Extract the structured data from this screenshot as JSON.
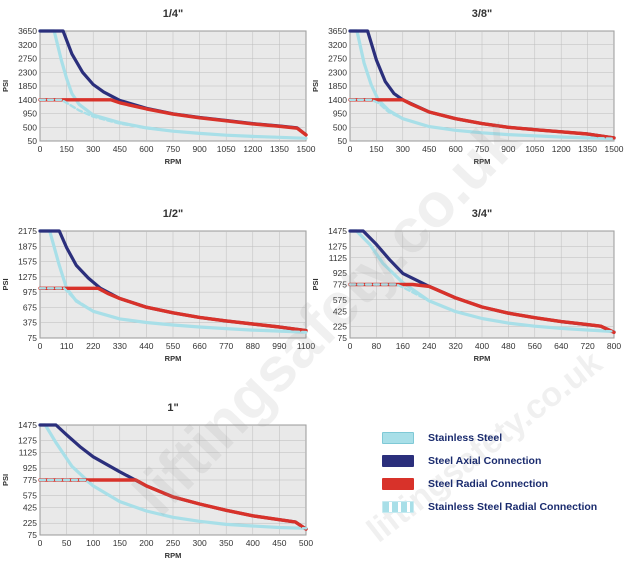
{
  "watermark": {
    "text_large": "liftingsafety.co.uk",
    "text_small": "liftingsafety.co.uk"
  },
  "colors": {
    "stainless_steel": "#a8dfe8",
    "steel_axial": "#2b2f7c",
    "steel_radial": "#d8322a",
    "stainless_radial": "#a8dfe8",
    "plot_bg": "#e9e9e9",
    "grid": "#bdbdbd"
  },
  "legend": {
    "items": [
      {
        "key": "stainless_steel",
        "label": "Stainless Steel",
        "style": "solid-light"
      },
      {
        "key": "steel_axial",
        "label": "Steel Axial Connection",
        "style": "solid-dark"
      },
      {
        "key": "steel_radial",
        "label": "Steel Radial Connection",
        "style": "solid-red"
      },
      {
        "key": "stainless_radial",
        "label": "Stainless Steel Radial Connection",
        "style": "dashed-light"
      }
    ]
  },
  "chart_data": [
    {
      "type": "line",
      "title": "1/4\"",
      "xlabel": "RPM",
      "ylabel": "PSI",
      "x_ticks": [
        0,
        150,
        300,
        450,
        600,
        750,
        900,
        1050,
        1200,
        1350,
        1500
      ],
      "y_ticks": [
        50,
        500,
        950,
        1400,
        1850,
        2300,
        2750,
        3200,
        3650
      ],
      "xlim": [
        0,
        1500
      ],
      "ylim": [
        50,
        3650
      ],
      "series": [
        {
          "name": "Stainless Steel",
          "x": [
            0,
            80,
            120,
            150,
            180,
            220,
            300,
            450,
            600,
            750,
            900,
            1050,
            1200,
            1350,
            1500
          ],
          "y": [
            3650,
            3650,
            2700,
            2100,
            1600,
            1250,
            900,
            650,
            480,
            370,
            300,
            240,
            200,
            170,
            140
          ]
        },
        {
          "name": "Steel Axial Connection",
          "x": [
            0,
            130,
            180,
            240,
            300,
            360,
            450,
            600,
            750,
            900,
            1050,
            1200,
            1350,
            1450,
            1500
          ],
          "y": [
            3650,
            3650,
            2900,
            2300,
            1900,
            1650,
            1380,
            1120,
            940,
            820,
            720,
            620,
            540,
            480,
            250
          ]
        },
        {
          "name": "Steel Radial Connection",
          "x": [
            0,
            400,
            450,
            600,
            750,
            900,
            1050,
            1200,
            1350,
            1450,
            1500
          ],
          "y": [
            1400,
            1400,
            1300,
            1100,
            930,
            810,
            710,
            610,
            530,
            470,
            250
          ]
        },
        {
          "name": "Stainless Steel Radial Connection",
          "x": [
            0,
            120,
            150,
            220,
            300,
            450,
            600,
            750,
            900,
            1050,
            1200,
            1350,
            1500
          ],
          "y": [
            1400,
            1400,
            1300,
            1050,
            850,
            620,
            470,
            370,
            300,
            240,
            200,
            170,
            140
          ]
        }
      ]
    },
    {
      "type": "line",
      "title": "3/8\"",
      "xlabel": "RPM",
      "ylabel": "PSI",
      "x_ticks": [
        0,
        150,
        300,
        450,
        600,
        750,
        900,
        1050,
        1200,
        1350,
        1500
      ],
      "y_ticks": [
        50,
        500,
        950,
        1400,
        1850,
        2300,
        2750,
        3200,
        3650
      ],
      "xlim": [
        0,
        1500
      ],
      "ylim": [
        50,
        3650
      ],
      "series": [
        {
          "name": "Stainless Steel",
          "x": [
            0,
            40,
            80,
            120,
            160,
            220,
            300,
            450,
            600,
            750,
            900,
            1050,
            1200,
            1350,
            1500
          ],
          "y": [
            3650,
            3650,
            2600,
            1900,
            1400,
            1050,
            780,
            520,
            400,
            320,
            260,
            220,
            180,
            150,
            130
          ]
        },
        {
          "name": "Steel Axial Connection",
          "x": [
            0,
            100,
            150,
            200,
            250,
            300,
            450,
            600,
            750,
            900,
            1050,
            1200,
            1350,
            1500
          ],
          "y": [
            3650,
            3650,
            2700,
            2000,
            1600,
            1400,
            1000,
            780,
            620,
            500,
            420,
            350,
            280,
            150
          ]
        },
        {
          "name": "Steel Radial Connection",
          "x": [
            0,
            300,
            350,
            450,
            600,
            750,
            900,
            1050,
            1200,
            1350,
            1500
          ],
          "y": [
            1400,
            1400,
            1250,
            1000,
            780,
            620,
            500,
            420,
            350,
            280,
            150
          ]
        },
        {
          "name": "Stainless Steel Radial Connection",
          "x": [
            0,
            120,
            160,
            220,
            300,
            450,
            600,
            750,
            900,
            1050,
            1200,
            1350,
            1500
          ],
          "y": [
            1400,
            1400,
            1300,
            1000,
            780,
            520,
            400,
            320,
            260,
            220,
            180,
            150,
            130
          ]
        }
      ]
    },
    {
      "type": "line",
      "title": "1/2\"",
      "xlabel": "RPM",
      "ylabel": "PSI",
      "x_ticks": [
        0,
        110,
        220,
        330,
        440,
        550,
        660,
        770,
        880,
        990,
        1100
      ],
      "y_ticks": [
        75,
        375,
        675,
        975,
        1275,
        1575,
        1875,
        2175
      ],
      "xlim": [
        0,
        1100
      ],
      "ylim": [
        75,
        2175
      ],
      "series": [
        {
          "name": "Stainless Steel",
          "x": [
            0,
            40,
            80,
            110,
            150,
            220,
            330,
            440,
            550,
            660,
            770,
            880,
            990,
            1100
          ],
          "y": [
            2175,
            2175,
            1500,
            1050,
            800,
            600,
            450,
            380,
            330,
            290,
            260,
            230,
            210,
            190
          ]
        },
        {
          "name": "Steel Axial Connection",
          "x": [
            0,
            80,
            110,
            150,
            200,
            250,
            330,
            440,
            550,
            660,
            770,
            880,
            990,
            1100
          ],
          "y": [
            2175,
            2175,
            1850,
            1500,
            1250,
            1050,
            850,
            680,
            570,
            480,
            410,
            350,
            290,
            220
          ]
        },
        {
          "name": "Steel Radial Connection",
          "x": [
            0,
            240,
            280,
            330,
            440,
            550,
            660,
            770,
            880,
            990,
            1100
          ],
          "y": [
            1050,
            1050,
            950,
            850,
            680,
            570,
            480,
            410,
            350,
            290,
            220
          ]
        },
        {
          "name": "Stainless Steel Radial Connection",
          "x": [
            0,
            100,
            140,
            220,
            330,
            440,
            550,
            660,
            770,
            880,
            990,
            1100
          ],
          "y": [
            1050,
            1050,
            850,
            600,
            450,
            380,
            330,
            290,
            260,
            230,
            210,
            190
          ]
        }
      ]
    },
    {
      "type": "line",
      "title": "3/4\"",
      "xlabel": "RPM",
      "ylabel": "PSI",
      "x_ticks": [
        0,
        80,
        160,
        240,
        320,
        400,
        480,
        560,
        640,
        720,
        800
      ],
      "y_ticks": [
        75,
        225,
        425,
        575,
        775,
        925,
        1125,
        1275,
        1475
      ],
      "xlim": [
        0,
        800
      ],
      "ylim": [
        75,
        1475
      ],
      "series": [
        {
          "name": "Stainless Steel",
          "x": [
            0,
            20,
            60,
            100,
            160,
            240,
            320,
            400,
            480,
            560,
            640,
            720,
            800
          ],
          "y": [
            1475,
            1475,
            1300,
            1050,
            800,
            560,
            420,
            330,
            270,
            230,
            200,
            180,
            160
          ]
        },
        {
          "name": "Steel Axial Connection",
          "x": [
            0,
            40,
            80,
            120,
            160,
            240,
            320,
            400,
            480,
            560,
            640,
            720,
            760,
            800
          ],
          "y": [
            1475,
            1475,
            1300,
            1100,
            920,
            750,
            600,
            480,
            400,
            340,
            290,
            250,
            230,
            150
          ]
        },
        {
          "name": "Steel Radial Connection",
          "x": [
            0,
            190,
            240,
            320,
            400,
            480,
            560,
            640,
            720,
            760,
            800
          ],
          "y": [
            775,
            775,
            750,
            600,
            480,
            400,
            340,
            290,
            250,
            230,
            150
          ]
        },
        {
          "name": "Stainless Steel Radial Connection",
          "x": [
            0,
            140,
            160,
            240,
            320,
            400,
            480,
            560,
            640,
            720,
            800
          ],
          "y": [
            775,
            775,
            740,
            560,
            420,
            330,
            270,
            230,
            200,
            180,
            160
          ]
        }
      ]
    },
    {
      "type": "line",
      "title": "1\"",
      "xlabel": "RPM",
      "ylabel": "PSI",
      "x_ticks": [
        0,
        50,
        100,
        150,
        200,
        250,
        300,
        350,
        400,
        450,
        500
      ],
      "y_ticks": [
        75,
        225,
        425,
        575,
        775,
        925,
        1125,
        1275,
        1475
      ],
      "xlim": [
        0,
        500
      ],
      "ylim": [
        75,
        1475
      ],
      "series": [
        {
          "name": "Stainless Steel",
          "x": [
            0,
            10,
            30,
            60,
            100,
            150,
            200,
            250,
            300,
            350,
            400,
            450,
            500
          ],
          "y": [
            1475,
            1475,
            1250,
            950,
            700,
            500,
            380,
            300,
            250,
            210,
            190,
            170,
            160
          ]
        },
        {
          "name": "Steel Axial Connection",
          "x": [
            0,
            30,
            50,
            75,
            100,
            150,
            200,
            250,
            300,
            350,
            400,
            450,
            480,
            500
          ],
          "y": [
            1475,
            1475,
            1350,
            1200,
            1070,
            880,
            700,
            560,
            470,
            390,
            320,
            270,
            240,
            150
          ]
        },
        {
          "name": "Steel Radial Connection",
          "x": [
            0,
            180,
            200,
            250,
            300,
            350,
            400,
            450,
            480,
            500
          ],
          "y": [
            775,
            775,
            700,
            560,
            470,
            390,
            320,
            270,
            240,
            150
          ]
        },
        {
          "name": "Stainless Steel Radial Connection",
          "x": [
            0,
            85,
            100,
            150,
            200,
            250,
            300,
            350,
            400,
            450,
            500
          ],
          "y": [
            775,
            775,
            700,
            500,
            380,
            300,
            250,
            210,
            190,
            170,
            160
          ]
        }
      ]
    }
  ]
}
